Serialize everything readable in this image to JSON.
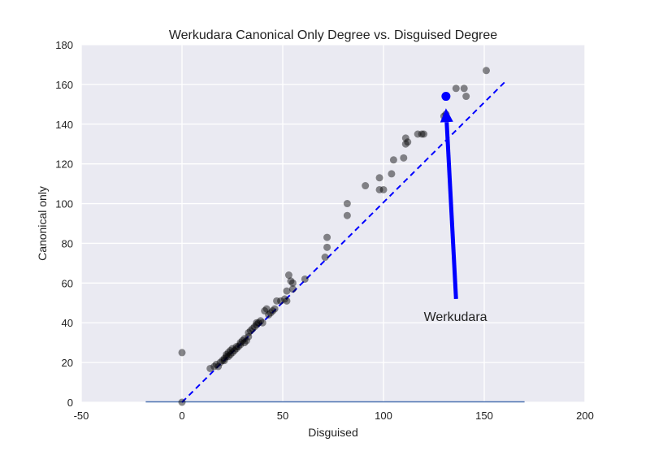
{
  "chart_data": {
    "type": "scatter",
    "title": "Werkudara Canonical Only Degree vs. Disguised Degree",
    "xlabel": "Disguised",
    "ylabel": "Canonical only",
    "xlim": [
      -50,
      200
    ],
    "ylim": [
      0,
      180
    ],
    "xticks": [
      -50,
      0,
      50,
      100,
      150,
      200
    ],
    "yticks": [
      0,
      20,
      40,
      60,
      80,
      100,
      120,
      140,
      160,
      180
    ],
    "grid": true,
    "legend": "none",
    "colors": {
      "background": "#eaeaf2",
      "grid": "#ffffff",
      "points": "#000000",
      "highlight": "#0000ff",
      "reference_line": "#0000ff",
      "baseline": "#4c72b0"
    },
    "point_alpha": 0.45,
    "reference_line": {
      "style": "dashed",
      "x": [
        0,
        160
      ],
      "y": [
        0,
        161
      ]
    },
    "baseline": {
      "x": [
        -18,
        170
      ],
      "y": [
        0,
        0
      ]
    },
    "highlight": {
      "label": "Werkudara",
      "x": 131,
      "y": 154
    },
    "annotation": {
      "text": "Werkudara",
      "arrow_from": [
        136,
        52
      ],
      "arrow_to": [
        131,
        148
      ],
      "text_at": [
        120,
        40
      ]
    },
    "points": [
      [
        0,
        0
      ],
      [
        0,
        25
      ],
      [
        14,
        17
      ],
      [
        16,
        18
      ],
      [
        17,
        19
      ],
      [
        18,
        18
      ],
      [
        19,
        20
      ],
      [
        20,
        21
      ],
      [
        21,
        21
      ],
      [
        21,
        22
      ],
      [
        22,
        23
      ],
      [
        22,
        24
      ],
      [
        23,
        23
      ],
      [
        23,
        25
      ],
      [
        24,
        24
      ],
      [
        24,
        26
      ],
      [
        25,
        27
      ],
      [
        25,
        25
      ],
      [
        26,
        26
      ],
      [
        27,
        27
      ],
      [
        27,
        28
      ],
      [
        28,
        28
      ],
      [
        29,
        29
      ],
      [
        29,
        30
      ],
      [
        30,
        31
      ],
      [
        31,
        30
      ],
      [
        31,
        32
      ],
      [
        32,
        31
      ],
      [
        33,
        33
      ],
      [
        33,
        35
      ],
      [
        34,
        36
      ],
      [
        35,
        37
      ],
      [
        36,
        38
      ],
      [
        37,
        39
      ],
      [
        37,
        40
      ],
      [
        38,
        40
      ],
      [
        39,
        41
      ],
      [
        40,
        40
      ],
      [
        41,
        46
      ],
      [
        42,
        47
      ],
      [
        43,
        44
      ],
      [
        44,
        45
      ],
      [
        45,
        46
      ],
      [
        46,
        47
      ],
      [
        47,
        51
      ],
      [
        49,
        51
      ],
      [
        51,
        52
      ],
      [
        52,
        51
      ],
      [
        52,
        56
      ],
      [
        53,
        64
      ],
      [
        54,
        61
      ],
      [
        55,
        60
      ],
      [
        55,
        57
      ],
      [
        61,
        62
      ],
      [
        71,
        73
      ],
      [
        72,
        78
      ],
      [
        72,
        83
      ],
      [
        82,
        94
      ],
      [
        82,
        100
      ],
      [
        91,
        109
      ],
      [
        98,
        107
      ],
      [
        98,
        113
      ],
      [
        100,
        107
      ],
      [
        104,
        115
      ],
      [
        105,
        122
      ],
      [
        110,
        123
      ],
      [
        111,
        130
      ],
      [
        111,
        133
      ],
      [
        112,
        131
      ],
      [
        117,
        135
      ],
      [
        119,
        135
      ],
      [
        120,
        135
      ],
      [
        130,
        144
      ],
      [
        131,
        145
      ],
      [
        136,
        158
      ],
      [
        140,
        158
      ],
      [
        141,
        154
      ],
      [
        151,
        167
      ]
    ]
  }
}
